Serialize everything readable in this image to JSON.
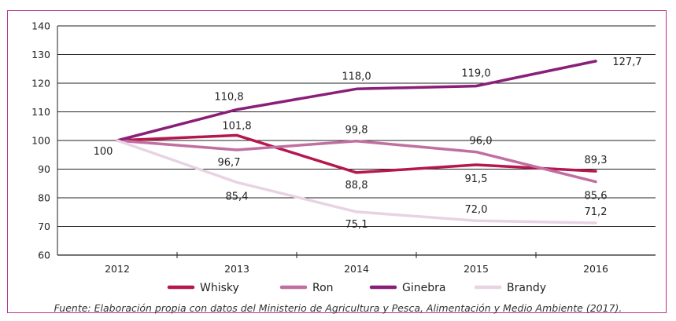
{
  "chart_data": {
    "type": "line",
    "title": "",
    "xlabel": "",
    "ylabel": "",
    "x": [
      "2012",
      "2013",
      "2014",
      "2015",
      "2016"
    ],
    "ylim": [
      60,
      140
    ],
    "yticks": [
      "60",
      "70",
      "80",
      "90",
      "100",
      "110",
      "120",
      "130",
      "140"
    ],
    "grid": true,
    "legend": "bottom",
    "series": [
      {
        "name": "Whisky",
        "color": "#b5174f",
        "values": [
          100,
          101.8,
          88.8,
          91.5,
          89.3
        ],
        "labels": [
          "",
          "101,8",
          "88,8",
          "91,5",
          "89,3"
        ]
      },
      {
        "name": "Ron",
        "color": "#c06fa0",
        "values": [
          100,
          96.7,
          99.8,
          96.0,
          85.6
        ],
        "labels": [
          "",
          "96,7",
          "99,8",
          "96,0",
          "85,6"
        ]
      },
      {
        "name": "Ginebra",
        "color": "#8a1f78",
        "values": [
          100,
          110.8,
          118.0,
          119.0,
          127.7
        ],
        "labels": [
          "100",
          "110,8",
          "118,0",
          "119,0",
          "127,7"
        ]
      },
      {
        "name": "Brandy",
        "color": "#e8d3e5",
        "values": [
          100,
          85.4,
          75.1,
          72.0,
          71.2
        ],
        "labels": [
          "",
          "85,4",
          "75,1",
          "72,0",
          "71,2"
        ]
      }
    ]
  },
  "caption": "Fuente: Elaboración propia con datos del Ministerio de Agricultura y Pesca, Alimentación y Medio Ambiente (2017)."
}
